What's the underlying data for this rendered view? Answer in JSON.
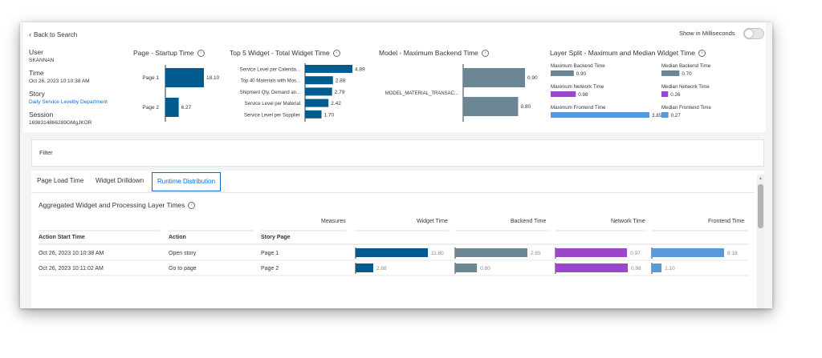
{
  "header": {
    "back_label": "Back to Search",
    "toggle_label": "Show in Milliseconds",
    "toggle_on": false
  },
  "details": {
    "user_label": "User",
    "user_value": "SKANNAN",
    "time_label": "Time",
    "time_value": "Oct 26, 2023 10:10:38 AM",
    "story_label": "Story",
    "story_value": "Daily Service Levelby Department",
    "session_label": "Session",
    "session_value": "1698314866289GMgJKOR"
  },
  "startup_chart": {
    "title": "Page - Startup Time",
    "chart_data": {
      "type": "bar",
      "categories": [
        "Page 1",
        "Page 2"
      ],
      "values": [
        18.1,
        6.27
      ],
      "value_labels": [
        "18.10",
        "6.27"
      ],
      "color": "#005b8e"
    }
  },
  "widget_chart": {
    "title": "Top 5 Widget - Total Widget Time",
    "chart_data": {
      "type": "bar",
      "categories": [
        "Service Level per Calenda...",
        "Top 40 Materials with Mos...",
        "Shipment Qty, Demand an...",
        "Service Level per Material",
        "Service Level per Supplier"
      ],
      "values": [
        4.89,
        2.88,
        2.79,
        2.42,
        1.7
      ],
      "value_labels": [
        "4.89",
        "2.88",
        "2.79",
        "2.42",
        "1.70"
      ],
      "color": "#005b8e"
    }
  },
  "backend_chart": {
    "title": "Model - Maximum Backend Time",
    "chart_data": {
      "type": "bar",
      "categories": [
        "MODEL_MATERIAL_TRANSAC..."
      ],
      "series": [
        {
          "values": [
            0.9
          ],
          "value_label": "0.90"
        },
        {
          "values": [
            0.8
          ],
          "value_label": "0.80"
        }
      ],
      "color": "#6b8793"
    }
  },
  "layer_split": {
    "title": "Layer Split - Maximum and Median Widget Time",
    "chart_data": {
      "type": "bar",
      "scale_max": 3.85,
      "items": [
        {
          "label": "Maximum Backend Time",
          "value": 0.9,
          "value_label": "0.90",
          "color": "#6b8793"
        },
        {
          "label": "Maximum Network Time",
          "value": 0.98,
          "value_label": "0.98",
          "color": "#9b47c9"
        },
        {
          "label": "Maximum Frontend Time",
          "value": 3.85,
          "value_label": "3.85",
          "color": "#5899da"
        },
        {
          "label": "Median Backend Time",
          "value": 0.7,
          "value_label": "0.70",
          "color": "#6b8793"
        },
        {
          "label": "Median Network Time",
          "value": 0.26,
          "value_label": "0.26",
          "color": "#9b47c9"
        },
        {
          "label": "Median Frontend Time",
          "value": 0.27,
          "value_label": "0.27",
          "color": "#5899da"
        }
      ]
    }
  },
  "filter": {
    "label": "Filter"
  },
  "tabs": [
    {
      "label": "Page Load Time",
      "selected": false
    },
    {
      "label": "Widget Drilldown",
      "selected": false
    },
    {
      "label": "Runtime Distribution",
      "selected": true
    }
  ],
  "table": {
    "title": "Aggregated Widget and Processing Layer Times",
    "measures_label": "Measures",
    "measure_headers": [
      "Widget Time",
      "Backend Time",
      "Network Time",
      "Frontend Time"
    ],
    "dim_headers": [
      "Action Start Time",
      "Action",
      "Story Page"
    ],
    "rows": [
      {
        "start": "Oct 26, 2023 10:10:38 AM",
        "action": "Open story",
        "page": "Page 1",
        "widget": 11.8,
        "widget_label": "11.80",
        "backend": 2.65,
        "backend_label": "2.65",
        "network": 0.97,
        "network_label": "0.97",
        "frontend": 8.18,
        "frontend_label": "8.18"
      },
      {
        "start": "Oct 26, 2023 10:11:02 AM",
        "action": "Go to page",
        "page": "Page 2",
        "widget": 2.88,
        "widget_label": "2.88",
        "backend": 0.8,
        "backend_label": "0.80",
        "network": 0.98,
        "network_label": "0.98",
        "frontend": 1.1,
        "frontend_label": "1.10"
      }
    ],
    "colors": {
      "widget": "#005b8e",
      "backend": "#6b8793",
      "network": "#9b47c9",
      "frontend": "#5899da"
    }
  }
}
